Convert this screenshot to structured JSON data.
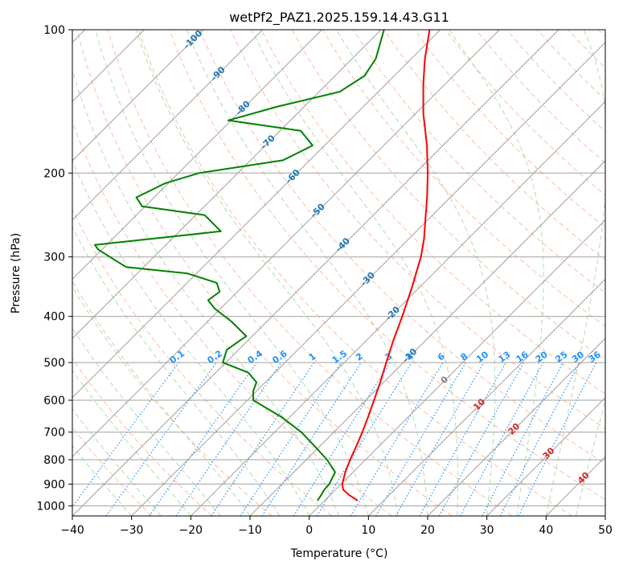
{
  "chart_data": {
    "type": "line",
    "subtype": "skew-t log-p",
    "title": "wetPf2_PAZ1.2025.159.14.43.G11",
    "xlabel": "Temperature (°C)",
    "ylabel": "Pressure (hPa)",
    "xlim": [
      -40,
      50
    ],
    "ylim": [
      1050,
      100
    ],
    "y_scale": "log",
    "grid": true,
    "x_ticks": [
      "−40",
      "−30",
      "−20",
      "−10",
      "0",
      "10",
      "20",
      "30",
      "40",
      "50"
    ],
    "x_tick_values": [
      -40,
      -30,
      -20,
      -10,
      0,
      10,
      20,
      30,
      40,
      50
    ],
    "y_ticks": [
      "100",
      "200",
      "300",
      "400",
      "500",
      "600",
      "700",
      "800",
      "900",
      "1000"
    ],
    "y_tick_values": [
      100,
      200,
      300,
      400,
      500,
      600,
      700,
      800,
      900,
      1000
    ],
    "series": [
      {
        "role": "temperature",
        "color": "#ff0000",
        "points": [
          [
            975,
            5.6
          ],
          [
            950,
            3.3
          ],
          [
            925,
            1.3
          ],
          [
            900,
            0.2
          ],
          [
            850,
            -1.3
          ],
          [
            800,
            -2.6
          ],
          [
            750,
            -3.8
          ],
          [
            700,
            -5.2
          ],
          [
            650,
            -6.8
          ],
          [
            600,
            -8.6
          ],
          [
            550,
            -10.6
          ],
          [
            500,
            -12.9
          ],
          [
            450,
            -15.4
          ],
          [
            400,
            -18.0
          ],
          [
            350,
            -21.1
          ],
          [
            300,
            -24.9
          ],
          [
            275,
            -27.4
          ],
          [
            250,
            -30.5
          ],
          [
            225,
            -33.9
          ],
          [
            200,
            -37.9
          ],
          [
            175,
            -42.7
          ],
          [
            150,
            -48.7
          ],
          [
            130,
            -53.7
          ],
          [
            115,
            -57.7
          ],
          [
            100,
            -61.8
          ]
        ]
      },
      {
        "role": "dewpoint",
        "color": "#008000",
        "points": [
          [
            975,
            -1.2
          ],
          [
            950,
            -1.5
          ],
          [
            925,
            -1.9
          ],
          [
            900,
            -2.0
          ],
          [
            850,
            -3.0
          ],
          [
            800,
            -6.5
          ],
          [
            750,
            -10.8
          ],
          [
            700,
            -15.5
          ],
          [
            650,
            -21.5
          ],
          [
            600,
            -29.0
          ],
          [
            575,
            -30.5
          ],
          [
            550,
            -31.5
          ],
          [
            525,
            -34.5
          ],
          [
            500,
            -40.5
          ],
          [
            470,
            -42.0
          ],
          [
            440,
            -41.0
          ],
          [
            410,
            -46.0
          ],
          [
            385,
            -51.0
          ],
          [
            370,
            -53.5
          ],
          [
            355,
            -53.0
          ],
          [
            340,
            -55.0
          ],
          [
            325,
            -61.5
          ],
          [
            315,
            -73.0
          ],
          [
            290,
            -80.5
          ],
          [
            283,
            -82.0
          ],
          [
            265,
            -63.0
          ],
          [
            245,
            -68.5
          ],
          [
            235,
            -80.5
          ],
          [
            225,
            -83.0
          ],
          [
            210,
            -80.5
          ],
          [
            200,
            -76.5
          ],
          [
            188,
            -64.5
          ],
          [
            175,
            -62.0
          ],
          [
            163,
            -66.5
          ],
          [
            155,
            -80.5
          ],
          [
            145,
            -74.5
          ],
          [
            135,
            -66.5
          ],
          [
            125,
            -65.0
          ],
          [
            115,
            -66.0
          ],
          [
            100,
            -69.5
          ]
        ]
      }
    ],
    "reference_lines": {
      "isotherm_color": "#a0a0a0",
      "dry_adiabat_color": "#ffa07a",
      "moist_adiabat_color": "#8fcf8f",
      "mixing_ratio_color": "#1e90ff",
      "isobar_color": "#a0a0a0"
    },
    "isotherm_labels": [
      "-100",
      "-90",
      "-80",
      "-70",
      "-60",
      "-50",
      "-40",
      "-30",
      "-20",
      "-10",
      "0",
      "10",
      "20",
      "30",
      "40"
    ],
    "isotherm_label_values": [
      -100,
      -90,
      -80,
      -70,
      -60,
      -50,
      -40,
      -30,
      -20,
      -10,
      0,
      10,
      20,
      30,
      40
    ],
    "isotherm_label_colors": {
      "negative": "#1f77b4",
      "zero": "#808080",
      "positive": "#d62728"
    },
    "mixing_ratio_labels": [
      "0.1",
      "0.2",
      "0.4",
      "0.6",
      "1",
      "1.5",
      "2",
      "3",
      "4",
      "6",
      "8",
      "10",
      "13",
      "16",
      "20",
      "25",
      "30",
      "36"
    ],
    "mixing_ratio_values": [
      0.1,
      0.2,
      0.4,
      0.6,
      1,
      1.5,
      2,
      3,
      4,
      6,
      8,
      10,
      13,
      16,
      20,
      25,
      30,
      36
    ]
  }
}
